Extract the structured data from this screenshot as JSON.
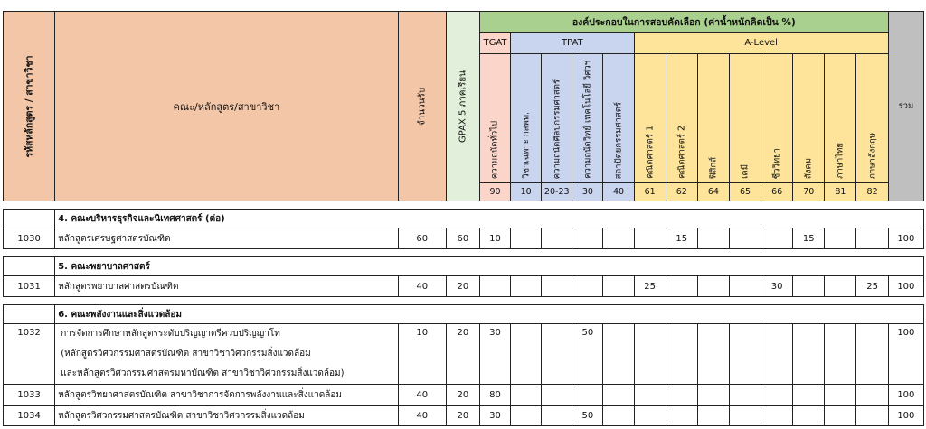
{
  "header": {
    "code_label": "รหัสหลักสูตร / สาขาวิชา",
    "faculty_label": "คณะ/หลักสูตร/สาขาวิชา",
    "quota_label": "จำนวนรับ",
    "gpax_label": "GPAX 5 ภาคเรียน",
    "components_label": "องค์ประกอบในการสอบคัดเลือก (ค่าน้ำหนักคิดเป็น %)",
    "total_label": "รวม",
    "tgat_label": "TGAT",
    "tpat_label": "TPAT",
    "alevel_label": "A-Level",
    "subjects": [
      {
        "name": "ความถนัดทั่วไป",
        "code": "90"
      },
      {
        "name": "วิชาเฉพาะ กสพท.",
        "code": "10"
      },
      {
        "name": "ความถนัดศิลปกรรมศาสตร์",
        "code": "20-23"
      },
      {
        "name": "ความถนัดวิทย์ เทคโนโลยี วิศวฯ",
        "code": "30"
      },
      {
        "name": "สถาปัตยกรรมศาสตร์",
        "code": "40"
      },
      {
        "name": "คณิตศาสตร์ 1",
        "code": "61"
      },
      {
        "name": "คณิตศาสตร์ 2",
        "code": "62"
      },
      {
        "name": "ฟิสิกส์",
        "code": "64"
      },
      {
        "name": "เคมี",
        "code": "65"
      },
      {
        "name": "ชีววิทยา",
        "code": "66"
      },
      {
        "name": "สังคม",
        "code": "70"
      },
      {
        "name": "ภาษาไทย",
        "code": "81"
      },
      {
        "name": "ภาษาอังกฤษ",
        "code": "82"
      }
    ]
  },
  "sections": [
    {
      "title": "4. คณะบริหารธุรกิจและนิเทศศาสตร์ (ต่อ)",
      "rows": [
        {
          "code": "1030",
          "lines": [
            "หลักสูตรเศรษฐศาสตรบัณฑิต"
          ],
          "quota": "60",
          "gpax": "60",
          "weights": [
            "10",
            "",
            "",
            "",
            "",
            "",
            "15",
            "",
            "",
            "",
            "15",
            "",
            ""
          ],
          "total": "100"
        }
      ]
    },
    {
      "title": "5. คณะพยาบาลศาสตร์",
      "rows": [
        {
          "code": "1031",
          "lines": [
            "หลักสูตรพยาบาลศาสตรบัณฑิต"
          ],
          "quota": "40",
          "gpax": "20",
          "weights": [
            "",
            "",
            "",
            "",
            "",
            "25",
            "",
            "",
            "",
            "30",
            "",
            "",
            "25"
          ],
          "total": "100"
        }
      ]
    },
    {
      "title": "6. คณะพลังงานและสิ่งแวดล้อม",
      "rows": [
        {
          "code": "1032",
          "lines": [
            "การจัดการศึกษาหลักสูตรระดับปริญญาตรีควบปริญญาโท",
            "(หลักสูตรวิศวกรรมศาสตรบัณฑิต สาขาวิชาวิศวกรรมสิ่งแวดล้อม",
            "และหลักสูตรวิศวกรรมศาสตรมหาบัณฑิต สาขาวิชาวิศวกรรมสิ่งแวดล้อม)"
          ],
          "quota": "10",
          "gpax": "20",
          "weights": [
            "30",
            "",
            "",
            "50",
            "",
            "",
            "",
            "",
            "",
            "",
            "",
            "",
            ""
          ],
          "total": "100"
        },
        {
          "code": "1033",
          "lines": [
            "หลักสูตรวิทยาศาสตรบัณฑิต สาขาวิชาการจัดการพลังงานและสิ่งแวดล้อม"
          ],
          "quota": "40",
          "gpax": "20",
          "weights": [
            "80",
            "",
            "",
            "",
            "",
            "",
            "",
            "",
            "",
            "",
            "",
            "",
            ""
          ],
          "total": "100"
        },
        {
          "code": "1034",
          "lines": [
            "หลักสูตรวิศวกรรมศาสตรบัณฑิต สาขาวิชาวิศวกรรมสิ่งแวดล้อม"
          ],
          "quota": "40",
          "gpax": "20",
          "weights": [
            "30",
            "",
            "",
            "50",
            "",
            "",
            "",
            "",
            "",
            "",
            "",
            "",
            ""
          ],
          "total": "100"
        }
      ]
    }
  ]
}
